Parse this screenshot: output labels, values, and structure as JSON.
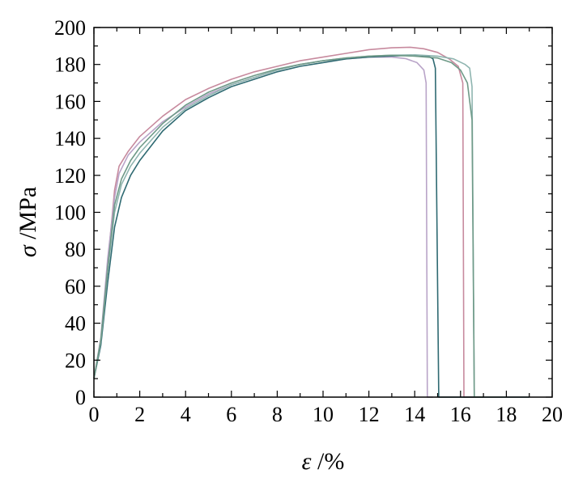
{
  "chart_data": {
    "type": "line",
    "title": "",
    "xlabel_symbol": "ε",
    "xlabel_unit": " /%",
    "ylabel_symbol": "σ",
    "ylabel_unit": " /MPa",
    "xlim": [
      0,
      20
    ],
    "ylim": [
      0,
      200
    ],
    "xticks": [
      0,
      2,
      4,
      6,
      8,
      10,
      12,
      14,
      16,
      18,
      20
    ],
    "yticks": [
      0,
      20,
      40,
      60,
      80,
      100,
      120,
      140,
      160,
      180,
      200
    ],
    "grid": false,
    "legend": "none",
    "series": [
      {
        "color": "#c78a9e",
        "points": [
          [
            0,
            10
          ],
          [
            0.3,
            30
          ],
          [
            0.6,
            72
          ],
          [
            0.9,
            112
          ],
          [
            1.1,
            125
          ],
          [
            1.5,
            133
          ],
          [
            2,
            141
          ],
          [
            3,
            152
          ],
          [
            4,
            161
          ],
          [
            5,
            167
          ],
          [
            6,
            172
          ],
          [
            7,
            176
          ],
          [
            8,
            179
          ],
          [
            9,
            182
          ],
          [
            10,
            184
          ],
          [
            11,
            186
          ],
          [
            12,
            188
          ],
          [
            13,
            189
          ],
          [
            13.8,
            189.3
          ],
          [
            14.4,
            188.5
          ],
          [
            15,
            186.5
          ],
          [
            15.5,
            183
          ],
          [
            15.9,
            179
          ],
          [
            16.1,
            170
          ],
          [
            16.15,
            0
          ],
          [
            16.5,
            0
          ],
          [
            17,
            0
          ]
        ]
      },
      {
        "color": "#b9a4c8",
        "points": [
          [
            0,
            10
          ],
          [
            0.3,
            32
          ],
          [
            0.6,
            75
          ],
          [
            0.9,
            108
          ],
          [
            1.1,
            121
          ],
          [
            1.5,
            131
          ],
          [
            2,
            138
          ],
          [
            3,
            149
          ],
          [
            4,
            157
          ],
          [
            5,
            164
          ],
          [
            6,
            169
          ],
          [
            7,
            173
          ],
          [
            8,
            177
          ],
          [
            9,
            180
          ],
          [
            10,
            182
          ],
          [
            11,
            183
          ],
          [
            12,
            184
          ],
          [
            13,
            184
          ],
          [
            13.6,
            183.2
          ],
          [
            14.1,
            181
          ],
          [
            14.4,
            177
          ],
          [
            14.5,
            170
          ],
          [
            14.55,
            0
          ],
          [
            14.8,
            0
          ]
        ]
      },
      {
        "color": "#2f6a72",
        "points": [
          [
            0,
            10
          ],
          [
            0.3,
            28
          ],
          [
            0.6,
            62
          ],
          [
            0.9,
            92
          ],
          [
            1.2,
            108
          ],
          [
            1.6,
            120
          ],
          [
            2,
            128
          ],
          [
            3,
            144
          ],
          [
            4,
            155
          ],
          [
            5,
            162
          ],
          [
            6,
            168
          ],
          [
            7,
            172
          ],
          [
            8,
            176
          ],
          [
            9,
            179
          ],
          [
            10,
            181
          ],
          [
            11,
            183
          ],
          [
            12,
            184
          ],
          [
            13,
            184.6
          ],
          [
            14,
            185
          ],
          [
            14.6,
            184.5
          ],
          [
            14.8,
            183
          ],
          [
            14.9,
            178
          ],
          [
            15.05,
            0
          ],
          [
            16,
            0
          ],
          [
            17,
            0
          ],
          [
            18,
            0
          ],
          [
            19,
            0
          ]
        ]
      },
      {
        "color": "#8fb5b0",
        "points": [
          [
            0,
            10
          ],
          [
            0.3,
            30
          ],
          [
            0.6,
            68
          ],
          [
            0.9,
            100
          ],
          [
            1.2,
            115
          ],
          [
            1.6,
            125
          ],
          [
            2,
            132
          ],
          [
            3,
            146
          ],
          [
            4,
            156
          ],
          [
            5,
            163
          ],
          [
            6,
            169
          ],
          [
            7,
            173
          ],
          [
            8,
            177
          ],
          [
            9,
            180
          ],
          [
            10,
            182
          ],
          [
            11,
            183.5
          ],
          [
            12,
            184.5
          ],
          [
            13,
            185
          ],
          [
            14,
            185.2
          ],
          [
            15,
            184.5
          ],
          [
            15.7,
            183
          ],
          [
            16.2,
            180
          ],
          [
            16.4,
            178
          ],
          [
            16.5,
            168
          ],
          [
            16.6,
            0
          ],
          [
            17,
            0
          ],
          [
            18,
            0
          ]
        ]
      },
      {
        "color": "#6f9a88",
        "points": [
          [
            0,
            10
          ],
          [
            0.3,
            31
          ],
          [
            0.6,
            70
          ],
          [
            0.9,
            104
          ],
          [
            1.2,
            118
          ],
          [
            1.6,
            128
          ],
          [
            2,
            135
          ],
          [
            3,
            148
          ],
          [
            4,
            158
          ],
          [
            5,
            165
          ],
          [
            6,
            170
          ],
          [
            7,
            174
          ],
          [
            8,
            177.5
          ],
          [
            9,
            180
          ],
          [
            10,
            182
          ],
          [
            11,
            183.5
          ],
          [
            12,
            184.5
          ],
          [
            13,
            185
          ],
          [
            14,
            184.5
          ],
          [
            15,
            183.5
          ],
          [
            15.6,
            181
          ],
          [
            16,
            177
          ],
          [
            16.3,
            170
          ],
          [
            16.5,
            150
          ],
          [
            16.6,
            0
          ],
          [
            17,
            0
          ]
        ]
      }
    ]
  }
}
